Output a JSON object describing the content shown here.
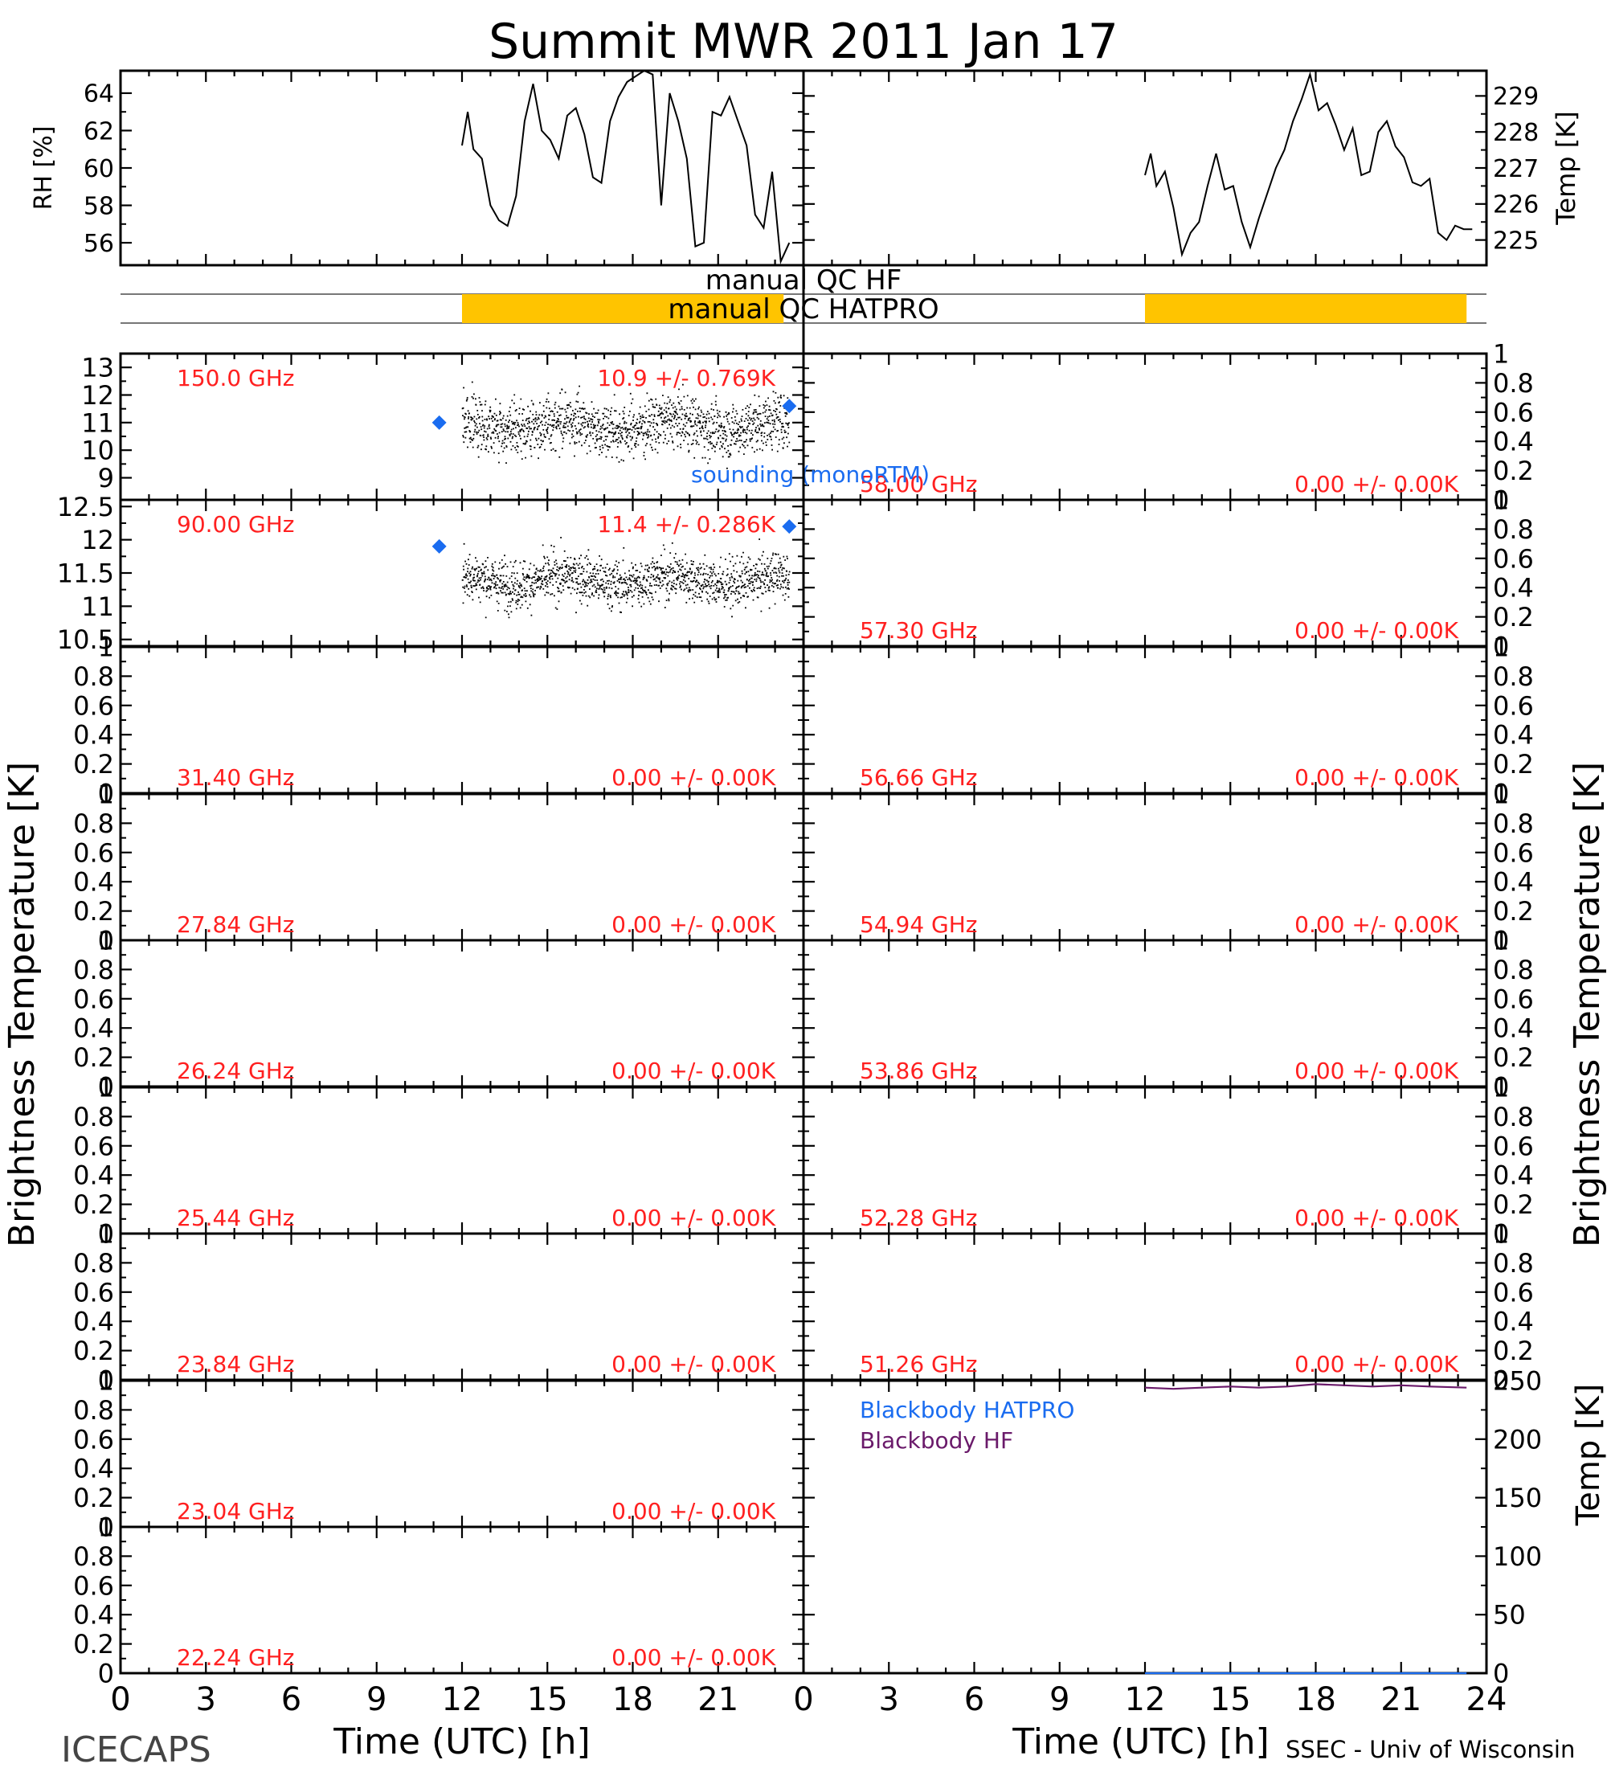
{
  "title": "Summit MWR 2011 Jan 17",
  "footer": {
    "left": "ICECAPS",
    "right": "SSEC - Univ of Wisconsin"
  },
  "colors": {
    "flag": "#ffc400",
    "label_red": "#ff2020",
    "sounding_blue": "#1a6cf0",
    "bb_purple": "#6a1a6a",
    "bb_blue": "#1a6cf0"
  },
  "qc": {
    "hf_label": "manual QC HF",
    "hatpro_label": "manual QC HATPRO",
    "hf_flag_hours": [
      12.0,
      23.3
    ],
    "hatpro_flag_hours": [
      12.0,
      23.3
    ]
  },
  "chart_data": [
    {
      "type": "line",
      "id": "rh",
      "ylabel": "RH [%]",
      "xlim": [
        0,
        24
      ],
      "ylim": [
        54.8,
        65.2
      ],
      "yticks": [
        56,
        58,
        60,
        62,
        64
      ],
      "x": [
        12.0,
        12.2,
        12.4,
        12.7,
        13.0,
        13.3,
        13.6,
        13.9,
        14.2,
        14.5,
        14.8,
        15.1,
        15.4,
        15.7,
        16.0,
        16.3,
        16.6,
        16.9,
        17.2,
        17.5,
        17.8,
        18.1,
        18.4,
        18.7,
        19.0,
        19.3,
        19.6,
        19.9,
        20.2,
        20.5,
        20.8,
        21.1,
        21.4,
        21.7,
        22.0,
        22.3,
        22.6,
        22.9,
        23.2,
        23.5
      ],
      "y": [
        61.2,
        63.0,
        61.0,
        60.5,
        58.0,
        57.2,
        56.9,
        58.5,
        62.5,
        64.5,
        62.0,
        61.5,
        60.5,
        62.8,
        63.2,
        61.8,
        59.5,
        59.2,
        62.5,
        63.8,
        64.6,
        64.9,
        65.2,
        65.0,
        58.0,
        64.0,
        62.5,
        60.5,
        55.8,
        56.0,
        63.0,
        62.8,
        63.8,
        62.5,
        61.2,
        57.5,
        56.8,
        59.8,
        55.0,
        56.0
      ]
    },
    {
      "type": "line",
      "id": "air_temp",
      "ylabel": "Temp [K]",
      "xlim": [
        0,
        24
      ],
      "ylim": [
        224.3,
        229.7
      ],
      "yticks": [
        225,
        226,
        227,
        228,
        229
      ],
      "x": [
        12.0,
        12.2,
        12.4,
        12.7,
        13.0,
        13.3,
        13.6,
        13.9,
        14.2,
        14.5,
        14.8,
        15.1,
        15.4,
        15.7,
        16.0,
        16.3,
        16.6,
        16.9,
        17.2,
        17.5,
        17.8,
        18.1,
        18.4,
        18.7,
        19.0,
        19.3,
        19.6,
        19.9,
        20.2,
        20.5,
        20.8,
        21.1,
        21.4,
        21.7,
        22.0,
        22.3,
        22.6,
        22.9,
        23.2,
        23.5
      ],
      "y": [
        226.8,
        227.4,
        226.5,
        226.9,
        225.9,
        224.6,
        225.2,
        225.5,
        226.5,
        227.4,
        226.4,
        226.5,
        225.5,
        224.8,
        225.6,
        226.3,
        227.0,
        227.5,
        228.3,
        228.9,
        229.6,
        228.6,
        228.8,
        228.2,
        227.5,
        228.1,
        226.8,
        226.9,
        228.0,
        228.3,
        227.6,
        227.3,
        226.6,
        226.5,
        226.7,
        225.2,
        225.0,
        225.4,
        225.3,
        225.3
      ]
    },
    {
      "type": "scatter",
      "id": "tb_150",
      "label": "150.0 GHz",
      "stat": "10.9 +/- 0.769K",
      "xlim": [
        0,
        24
      ],
      "ylim": [
        8.2,
        13.5
      ],
      "yticks": [
        9,
        10,
        11,
        12,
        13
      ],
      "mean": 10.9,
      "sd": 0.769,
      "x_start": 12.0,
      "x_end": 23.5,
      "sounding": {
        "x": [
          11.2,
          23.5
        ],
        "y": [
          11.0,
          11.6
        ]
      }
    },
    {
      "type": "scatter",
      "id": "tb_90",
      "label": "90.00 GHz",
      "stat": "11.4 +/- 0.286K",
      "xlim": [
        0,
        24
      ],
      "ylim": [
        10.4,
        12.6
      ],
      "yticks": [
        10.5,
        11.0,
        11.5,
        12.0,
        12.5
      ],
      "mean": 11.4,
      "sd": 0.286,
      "x_start": 12.0,
      "x_end": 23.5,
      "sounding": {
        "x": [
          11.2,
          23.5
        ],
        "y": [
          11.9,
          12.2
        ]
      }
    },
    {
      "type": "scatter",
      "id": "tb_3140",
      "label": "31.40 GHz",
      "stat": "0.00 +/- 0.00K",
      "xlim": [
        0,
        24
      ],
      "ylim": [
        0,
        1
      ],
      "yticks": [
        0.0,
        0.2,
        0.4,
        0.6,
        0.8,
        1.0
      ]
    },
    {
      "type": "scatter",
      "id": "tb_2784",
      "label": "27.84 GHz",
      "stat": "0.00 +/- 0.00K",
      "xlim": [
        0,
        24
      ],
      "ylim": [
        0,
        1
      ],
      "yticks": [
        0.0,
        0.2,
        0.4,
        0.6,
        0.8,
        1.0
      ]
    },
    {
      "type": "scatter",
      "id": "tb_2624",
      "label": "26.24 GHz",
      "stat": "0.00 +/- 0.00K",
      "xlim": [
        0,
        24
      ],
      "ylim": [
        0,
        1
      ],
      "yticks": [
        0.0,
        0.2,
        0.4,
        0.6,
        0.8,
        1.0
      ]
    },
    {
      "type": "scatter",
      "id": "tb_2544",
      "label": "25.44 GHz",
      "stat": "0.00 +/- 0.00K",
      "xlim": [
        0,
        24
      ],
      "ylim": [
        0,
        1
      ],
      "yticks": [
        0.0,
        0.2,
        0.4,
        0.6,
        0.8,
        1.0
      ]
    },
    {
      "type": "scatter",
      "id": "tb_2384",
      "label": "23.84 GHz",
      "stat": "0.00 +/- 0.00K",
      "xlim": [
        0,
        24
      ],
      "ylim": [
        0,
        1
      ],
      "yticks": [
        0.0,
        0.2,
        0.4,
        0.6,
        0.8,
        1.0
      ]
    },
    {
      "type": "scatter",
      "id": "tb_2304",
      "label": "23.04 GHz",
      "stat": "0.00 +/- 0.00K",
      "xlim": [
        0,
        24
      ],
      "ylim": [
        0,
        1
      ],
      "yticks": [
        0.0,
        0.2,
        0.4,
        0.6,
        0.8,
        1.0
      ]
    },
    {
      "type": "scatter",
      "id": "tb_2224",
      "label": "22.24 GHz",
      "stat": "0.00 +/- 0.00K",
      "xlim": [
        0,
        24
      ],
      "ylim": [
        0,
        1
      ],
      "yticks": [
        0.0,
        0.2,
        0.4,
        0.6,
        0.8,
        1.0
      ]
    },
    {
      "type": "scatter",
      "id": "tb_5800",
      "label": "58.00 GHz",
      "stat": "0.00 +/- 0.00K",
      "xlim": [
        0,
        24
      ],
      "ylim": [
        0,
        1
      ],
      "yticks": [
        0.0,
        0.2,
        0.4,
        0.6,
        0.8,
        1.0
      ]
    },
    {
      "type": "scatter",
      "id": "tb_5730",
      "label": "57.30 GHz",
      "stat": "0.00 +/- 0.00K",
      "xlim": [
        0,
        24
      ],
      "ylim": [
        0,
        1
      ],
      "yticks": [
        0.0,
        0.2,
        0.4,
        0.6,
        0.8,
        1.0
      ]
    },
    {
      "type": "scatter",
      "id": "tb_5666",
      "label": "56.66 GHz",
      "stat": "0.00 +/- 0.00K",
      "xlim": [
        0,
        24
      ],
      "ylim": [
        0,
        1
      ],
      "yticks": [
        0.0,
        0.2,
        0.4,
        0.6,
        0.8,
        1.0
      ]
    },
    {
      "type": "scatter",
      "id": "tb_5494",
      "label": "54.94 GHz",
      "stat": "0.00 +/- 0.00K",
      "xlim": [
        0,
        24
      ],
      "ylim": [
        0,
        1
      ],
      "yticks": [
        0.0,
        0.2,
        0.4,
        0.6,
        0.8,
        1.0
      ]
    },
    {
      "type": "scatter",
      "id": "tb_5386",
      "label": "53.86 GHz",
      "stat": "0.00 +/- 0.00K",
      "xlim": [
        0,
        24
      ],
      "ylim": [
        0,
        1
      ],
      "yticks": [
        0.0,
        0.2,
        0.4,
        0.6,
        0.8,
        1.0
      ]
    },
    {
      "type": "scatter",
      "id": "tb_5228",
      "label": "52.28 GHz",
      "stat": "0.00 +/- 0.00K",
      "xlim": [
        0,
        24
      ],
      "ylim": [
        0,
        1
      ],
      "yticks": [
        0.0,
        0.2,
        0.4,
        0.6,
        0.8,
        1.0
      ]
    },
    {
      "type": "scatter",
      "id": "tb_5126",
      "label": "51.26 GHz",
      "stat": "0.00 +/- 0.00K",
      "xlim": [
        0,
        24
      ],
      "ylim": [
        0,
        1
      ],
      "yticks": [
        0.0,
        0.2,
        0.4,
        0.6,
        0.8,
        1.0
      ]
    },
    {
      "type": "line",
      "id": "blackbody",
      "ylabel": "Temp [K]",
      "xlim": [
        0,
        24
      ],
      "ylim": [
        0,
        250
      ],
      "yticks": [
        0,
        50,
        100,
        150,
        200,
        250
      ],
      "series": [
        {
          "name": "Blackbody HATPRO",
          "x": [
            12.0,
            23.3
          ],
          "y": [
            0,
            0
          ]
        },
        {
          "name": "Blackbody HF",
          "x": [
            12.0,
            13.0,
            14.0,
            15.0,
            16.0,
            17.0,
            18.0,
            19.0,
            20.0,
            21.0,
            22.0,
            23.3
          ],
          "y": [
            244,
            243,
            244,
            245,
            244,
            245,
            247,
            246,
            245,
            246,
            245,
            244
          ]
        }
      ]
    }
  ],
  "axes": {
    "left_ylabel": "Brightness Temperature [K]",
    "right_ylabel": "Brightness Temperature [K]",
    "xlabel": "Time (UTC) [h]",
    "xticks": [
      0,
      3,
      6,
      9,
      12,
      15,
      18,
      21
    ],
    "xticks_right": [
      0,
      3,
      6,
      9,
      12,
      15,
      18,
      21,
      24
    ],
    "sounding_label": "sounding (monoRTM)"
  }
}
